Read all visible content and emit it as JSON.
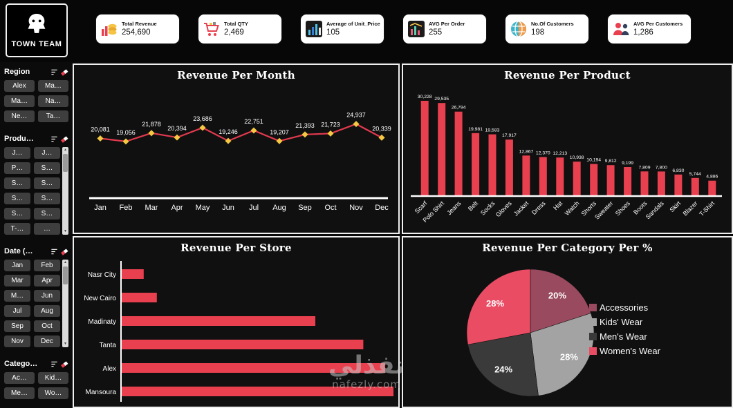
{
  "logo": {
    "name": "TOWN TEAM"
  },
  "header_cards": [
    {
      "title": "Total Revenue",
      "value": "254,690",
      "icon": "coins-icon"
    },
    {
      "title": "Total QTY",
      "value": "2,469",
      "icon": "cart-icon"
    },
    {
      "title": "Average of Unit_Price",
      "value": "105",
      "icon": "price-bars-icon"
    },
    {
      "title": "AVG Per Order",
      "value": "255",
      "icon": "order-chart-icon"
    },
    {
      "title": "No.Of Customers",
      "value": "198",
      "icon": "globe-icon"
    },
    {
      "title": "AVG Per Customers",
      "value": "1,286",
      "icon": "people-icon"
    }
  ],
  "sidebar": {
    "sections": [
      {
        "title": "Region",
        "items": [
          "Alex",
          "Ma…",
          "Ma…",
          "Na…",
          "Ne…",
          "Ta…"
        ],
        "scrollbar": false
      },
      {
        "title": "Produ…",
        "items": [
          "J…",
          "J…",
          "P…",
          "S…",
          "S…",
          "S…",
          "S…",
          "S…",
          "S…",
          "S…",
          "T-…",
          "…"
        ],
        "scrollbar": true
      },
      {
        "title": "Date (…",
        "items": [
          "Jan",
          "Feb",
          "Mar",
          "Apr",
          "M…",
          "Jun",
          "Jul",
          "Aug",
          "Sep",
          "Oct",
          "Nov",
          "Dec"
        ],
        "scrollbar": true
      },
      {
        "title": "Catego…",
        "items": [
          "Ac…",
          "Kid…",
          "Me…",
          "Wo…"
        ],
        "scrollbar": false
      }
    ]
  },
  "chart_data": [
    {
      "type": "line",
      "title": "Revenue Per Month",
      "categories": [
        "Jan",
        "Feb",
        "Mar",
        "Apr",
        "May",
        "Jun",
        "Jul",
        "Aug",
        "Sep",
        "Oct",
        "Nov",
        "Dec"
      ],
      "values": [
        20081,
        19056,
        21878,
        20394,
        23686,
        19246,
        22751,
        19207,
        21393,
        21723,
        24937,
        20339
      ],
      "labels": [
        "20,081",
        "19,056",
        "21,878",
        "20,394",
        "23,686",
        "19,246",
        "22,751",
        "19,207",
        "21,393",
        "21,723",
        "24,937",
        "20,339"
      ],
      "ylim": [
        0,
        26000
      ],
      "grid": false,
      "line_color": "#e23a4e",
      "marker_color": "#f5c842"
    },
    {
      "type": "bar",
      "title": "Revenue Per Product",
      "categories": [
        "Scarf",
        "Polo Shirt",
        "Jeans",
        "Belt",
        "Socks",
        "Gloves",
        "Jacket",
        "Dress",
        "Hat",
        "Watch",
        "Shorts",
        "Sweater",
        "Shoes",
        "Boots",
        "Sandals",
        "Skirt",
        "Blazer",
        "T-Shirt"
      ],
      "values": [
        30228,
        29535,
        26794,
        19981,
        19583,
        17917,
        12867,
        12370,
        12213,
        10938,
        10194,
        9812,
        9199,
        7809,
        7800,
        6830,
        5744,
        4886
      ],
      "labels": [
        "30,228",
        "29,535",
        "26,794",
        "19,981",
        "19,583",
        "17,917",
        "12,867",
        "12,370",
        "12,213",
        "10,938",
        "10,194",
        "9,812",
        "9,199",
        "7,809",
        "7,800",
        "6,830",
        "5,744",
        "4,886"
      ],
      "ylim": [
        0,
        32000
      ],
      "bar_color": "#e8404f"
    },
    {
      "type": "barh",
      "title": "Revenue Per Store",
      "categories": [
        "Nasr City",
        "New Cairo",
        "Madinaty",
        "Tanta",
        "Alex",
        "Mansoura"
      ],
      "values": [
        5200,
        8200,
        44500,
        55500,
        60500,
        62400
      ],
      "data_labels": false,
      "bar_color": "#e8404f"
    },
    {
      "type": "pie",
      "title": "Revenue Per Category Per %",
      "legend_position": "right",
      "slices": [
        {
          "label": "Accessories",
          "pct": 20,
          "pct_label": "20%",
          "color": "#9a4a5e"
        },
        {
          "label": "Kids' Wear",
          "pct": 28,
          "pct_label": "28%",
          "color": "#a3a3a3"
        },
        {
          "label": "Men's Wear",
          "pct": 24,
          "pct_label": "24%",
          "color": "#3a3a3a"
        },
        {
          "label": "Women's Wear",
          "pct": 28,
          "pct_label": "28%",
          "color": "#ea4c63"
        }
      ]
    }
  ],
  "watermark": {
    "arabic": "نفذلي",
    "domain": "nafezly.com"
  }
}
